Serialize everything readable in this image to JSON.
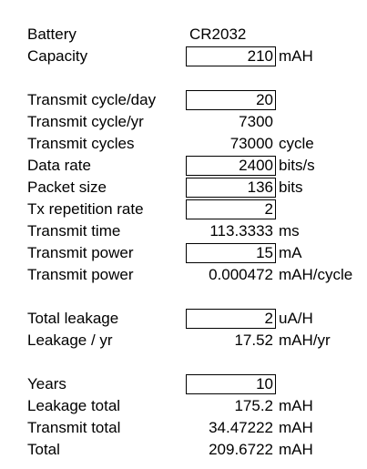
{
  "sections": [
    [
      {
        "label": "Battery",
        "value": "CR2032",
        "align": "left"
      },
      {
        "label": "Capacity",
        "value": "210",
        "unit": "mAH",
        "input": true
      }
    ],
    [
      {
        "label": "Transmit cycle/day",
        "value": "20",
        "input": true
      },
      {
        "label": "Transmit cycle/yr",
        "value": "7300"
      },
      {
        "label": "Transmit cycles",
        "value": "73000",
        "unit": "cycle"
      },
      {
        "label": "Data rate",
        "value": "2400",
        "unit": "bits/s",
        "input": true
      },
      {
        "label": "Packet size",
        "value": "136",
        "unit": "bits",
        "input": true
      },
      {
        "label": "Tx repetition rate",
        "value": "2",
        "input": true
      },
      {
        "label": "Transmit time",
        "value": "113.3333",
        "unit": "ms"
      },
      {
        "label": "Transmit power",
        "value": "15",
        "unit": "mA",
        "input": true
      },
      {
        "label": "Transmit power",
        "value": "0.000472",
        "unit": "mAH/cycle"
      }
    ],
    [
      {
        "label": "Total leakage",
        "value": "2",
        "unit": "uA/H",
        "input": true
      },
      {
        "label": "Leakage / yr",
        "value": "17.52",
        "unit": "mAH/yr"
      }
    ],
    [
      {
        "label": "Years",
        "value": "10",
        "input": true
      },
      {
        "label": "Leakage total",
        "value": "175.2",
        "unit": "mAH"
      },
      {
        "label": "Transmit total",
        "value": "34.47222",
        "unit": "mAH"
      },
      {
        "label": "Total",
        "value": "209.6722",
        "unit": "mAH"
      }
    ]
  ]
}
